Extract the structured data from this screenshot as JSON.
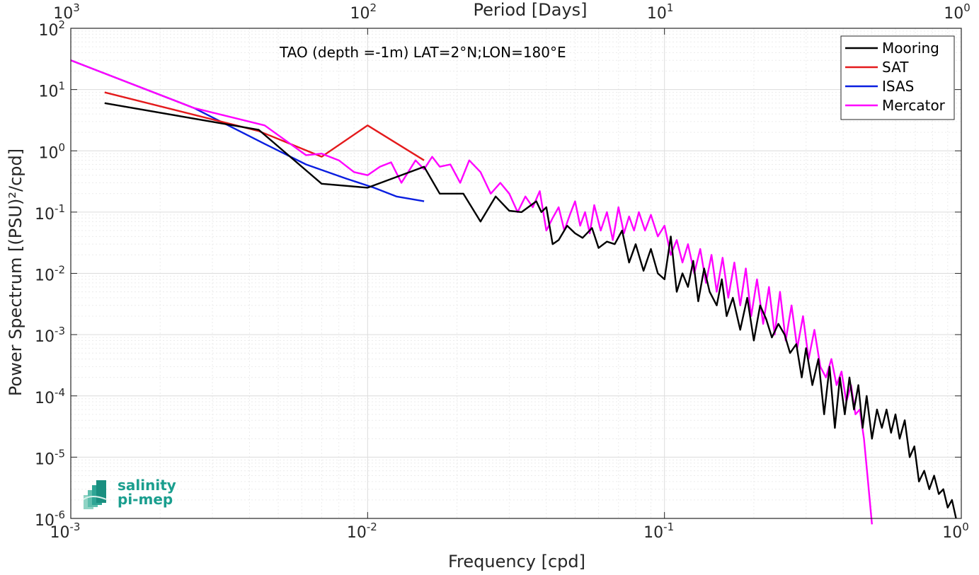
{
  "chart_data": {
    "type": "line",
    "x_scale": "log",
    "y_scale": "log",
    "xlim": [
      0.001,
      1
    ],
    "ylim": [
      1e-06,
      100
    ],
    "grid": true,
    "xlabel": "Frequency [cpd]",
    "ylabel": "Power Spectrum [(PSU)²/cpd]",
    "top_axis_label": "Period [Days]",
    "x_ticks": [
      {
        "value": 0.001,
        "base": "10",
        "exp": "-3"
      },
      {
        "value": 0.01,
        "base": "10",
        "exp": "-2"
      },
      {
        "value": 0.1,
        "base": "10",
        "exp": "-1"
      },
      {
        "value": 1,
        "base": "10",
        "exp": "0"
      }
    ],
    "top_ticks": [
      {
        "value": 0.001,
        "base": "10",
        "exp": "3"
      },
      {
        "value": 0.01,
        "base": "10",
        "exp": "2"
      },
      {
        "value": 0.1,
        "base": "10",
        "exp": "1"
      },
      {
        "value": 1,
        "base": "10",
        "exp": "0"
      }
    ],
    "y_ticks": [
      {
        "value": 100,
        "base": "10",
        "exp": "2"
      },
      {
        "value": 10,
        "base": "10",
        "exp": "1"
      },
      {
        "value": 1,
        "base": "10",
        "exp": "0"
      },
      {
        "value": 0.1,
        "base": "10",
        "exp": "-1"
      },
      {
        "value": 0.01,
        "base": "10",
        "exp": "-2"
      },
      {
        "value": 0.001,
        "base": "10",
        "exp": "-3"
      },
      {
        "value": 0.0001,
        "base": "10",
        "exp": "-4"
      },
      {
        "value": 1e-05,
        "base": "10",
        "exp": "-5"
      },
      {
        "value": 1e-06,
        "base": "10",
        "exp": "-6"
      }
    ],
    "annotation": "TAO (depth =-1m) LAT=2°N;LON=180°E",
    "legend_position": "top-right",
    "series": [
      {
        "name": "Mooring",
        "color": "#000000",
        "x": [
          0.0013,
          0.0043,
          0.007,
          0.01,
          0.0155,
          0.0175,
          0.021,
          0.024,
          0.027,
          0.03,
          0.033,
          0.037,
          0.0385,
          0.04,
          0.042,
          0.044,
          0.047,
          0.05,
          0.053,
          0.057,
          0.06,
          0.064,
          0.068,
          0.072,
          0.076,
          0.08,
          0.085,
          0.09,
          0.095,
          0.1,
          0.105,
          0.11,
          0.115,
          0.12,
          0.125,
          0.13,
          0.136,
          0.142,
          0.15,
          0.156,
          0.162,
          0.17,
          0.18,
          0.19,
          0.2,
          0.21,
          0.22,
          0.23,
          0.242,
          0.254,
          0.265,
          0.278,
          0.29,
          0.3,
          0.315,
          0.33,
          0.345,
          0.36,
          0.375,
          0.39,
          0.405,
          0.42,
          0.435,
          0.45,
          0.465,
          0.48,
          0.5,
          0.52,
          0.54,
          0.56,
          0.58,
          0.6,
          0.62,
          0.645,
          0.67,
          0.695,
          0.72,
          0.75,
          0.78,
          0.81,
          0.84,
          0.87,
          0.9,
          0.93,
          0.96
        ],
        "y": [
          6.0,
          2.2,
          0.29,
          0.25,
          0.55,
          0.2,
          0.2,
          0.07,
          0.18,
          0.105,
          0.1,
          0.15,
          0.1,
          0.12,
          0.03,
          0.035,
          0.06,
          0.045,
          0.038,
          0.055,
          0.026,
          0.033,
          0.03,
          0.05,
          0.015,
          0.03,
          0.011,
          0.025,
          0.01,
          0.008,
          0.04,
          0.005,
          0.01,
          0.006,
          0.016,
          0.0035,
          0.012,
          0.005,
          0.003,
          0.008,
          0.002,
          0.004,
          0.0012,
          0.004,
          0.0008,
          0.003,
          0.0018,
          0.0009,
          0.0015,
          0.001,
          0.0005,
          0.0007,
          0.0002,
          0.0006,
          0.00015,
          0.0004,
          5e-05,
          0.0003,
          3e-05,
          0.0002,
          5e-05,
          0.0002,
          6e-05,
          0.00015,
          3e-05,
          0.0001,
          2e-05,
          6e-05,
          3e-05,
          6e-05,
          2.5e-05,
          5e-05,
          2e-05,
          4e-05,
          1e-05,
          1.5e-05,
          4e-06,
          6e-06,
          3e-06,
          5e-06,
          2.5e-06,
          3e-06,
          1.5e-06,
          2e-06,
          1e-06
        ]
      },
      {
        "name": "SAT",
        "color": "#e41a1c",
        "x": [
          0.0013,
          0.0043,
          0.007,
          0.01,
          0.0155
        ],
        "y": [
          9.0,
          2.1,
          0.8,
          2.6,
          0.7
        ]
      },
      {
        "name": "ISAS",
        "color": "#0a1ee0",
        "x": [
          0.001,
          0.0026,
          0.0045,
          0.0062,
          0.0085,
          0.0105,
          0.0125,
          0.0155
        ],
        "y": [
          30.0,
          5.0,
          1.3,
          0.6,
          0.35,
          0.25,
          0.18,
          0.15
        ]
      },
      {
        "name": "Mercator",
        "color": "#ff00ff",
        "x": [
          0.001,
          0.0026,
          0.0045,
          0.0062,
          0.007,
          0.008,
          0.009,
          0.01,
          0.011,
          0.012,
          0.013,
          0.0145,
          0.0155,
          0.0165,
          0.0175,
          0.019,
          0.0205,
          0.022,
          0.024,
          0.026,
          0.028,
          0.03,
          0.032,
          0.034,
          0.036,
          0.038,
          0.04,
          0.042,
          0.044,
          0.046,
          0.048,
          0.05,
          0.052,
          0.054,
          0.056,
          0.058,
          0.061,
          0.064,
          0.067,
          0.07,
          0.073,
          0.076,
          0.079,
          0.082,
          0.086,
          0.09,
          0.095,
          0.1,
          0.105,
          0.11,
          0.115,
          0.12,
          0.126,
          0.132,
          0.138,
          0.144,
          0.15,
          0.157,
          0.164,
          0.172,
          0.18,
          0.188,
          0.196,
          0.205,
          0.215,
          0.225,
          0.235,
          0.245,
          0.256,
          0.268,
          0.28,
          0.293,
          0.306,
          0.32,
          0.335,
          0.35,
          0.365,
          0.38,
          0.395,
          0.41,
          0.425,
          0.44,
          0.455,
          0.47,
          0.485,
          0.5
        ],
        "y": [
          30.0,
          5.0,
          2.6,
          0.85,
          0.9,
          0.7,
          0.45,
          0.4,
          0.55,
          0.65,
          0.3,
          0.7,
          0.5,
          0.8,
          0.55,
          0.6,
          0.3,
          0.7,
          0.45,
          0.2,
          0.3,
          0.2,
          0.1,
          0.18,
          0.12,
          0.22,
          0.05,
          0.08,
          0.12,
          0.05,
          0.09,
          0.15,
          0.06,
          0.1,
          0.045,
          0.13,
          0.05,
          0.1,
          0.035,
          0.12,
          0.045,
          0.085,
          0.05,
          0.1,
          0.05,
          0.09,
          0.04,
          0.06,
          0.02,
          0.035,
          0.015,
          0.03,
          0.01,
          0.025,
          0.007,
          0.02,
          0.005,
          0.018,
          0.004,
          0.015,
          0.003,
          0.012,
          0.002,
          0.008,
          0.0015,
          0.006,
          0.001,
          0.005,
          0.0008,
          0.003,
          0.0006,
          0.002,
          0.0004,
          0.0012,
          0.0003,
          0.0002,
          0.0004,
          0.00015,
          0.00025,
          8e-05,
          0.00015,
          5e-05,
          6e-05,
          2e-05,
          4e-06,
          8e-07
        ]
      }
    ]
  },
  "logo": {
    "line1": "salinity",
    "line2": "pi-mep"
  }
}
